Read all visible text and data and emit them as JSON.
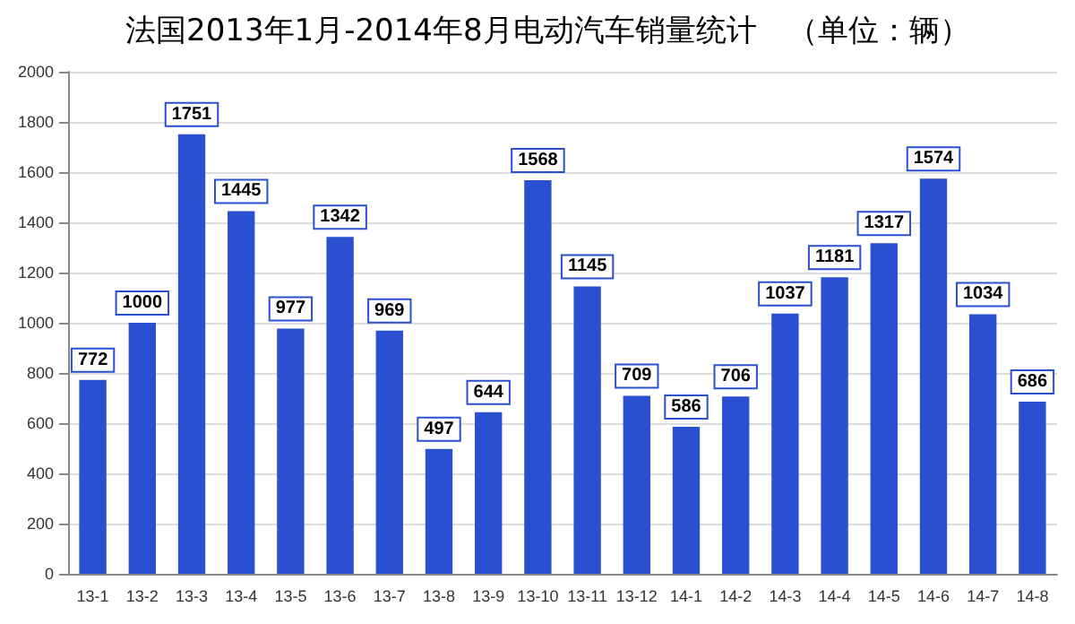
{
  "chart_data": {
    "type": "bar",
    "title": "法国2013年1月-2014年8月电动汽车销量统计　（单位：辆）",
    "categories": [
      "13-1",
      "13-2",
      "13-3",
      "13-4",
      "13-5",
      "13-6",
      "13-7",
      "13-8",
      "13-9",
      "13-10",
      "13-11",
      "13-12",
      "14-1",
      "14-2",
      "14-3",
      "14-4",
      "14-5",
      "14-6",
      "14-7",
      "14-8"
    ],
    "values": [
      772,
      1000,
      1751,
      1445,
      977,
      1342,
      969,
      497,
      644,
      1568,
      1145,
      709,
      586,
      706,
      1037,
      1181,
      1317,
      1574,
      1034,
      686
    ],
    "color": "#2a4fd0",
    "ylim": [
      0,
      2000
    ],
    "yticks": [
      0,
      200,
      400,
      600,
      800,
      1000,
      1200,
      1400,
      1600,
      1800,
      2000
    ],
    "grid": "y",
    "data_labels": true
  }
}
